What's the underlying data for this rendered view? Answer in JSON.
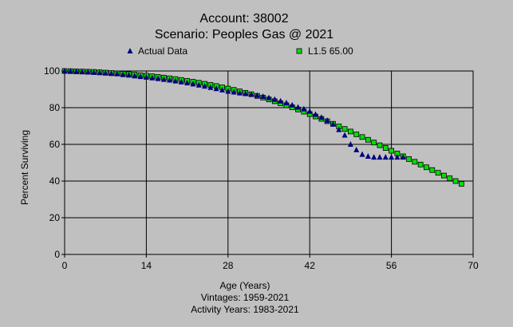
{
  "chart_data": {
    "type": "scatter",
    "title": "Account: 38002",
    "subtitle": "Scenario: Peoples Gas @ 2021",
    "xlabel": "Age (Years)",
    "ylabel": "Percent Surviving",
    "notes": [
      "Vintages: 1959-2021",
      "Activity Years: 1983-2021"
    ],
    "xlim": [
      0,
      70
    ],
    "ylim": [
      0,
      100
    ],
    "xticks": [
      0,
      14,
      28,
      42,
      56,
      70
    ],
    "yticks": [
      0,
      20,
      40,
      60,
      80,
      100
    ],
    "grid": true,
    "legend_position": "top",
    "series": [
      {
        "name": "Actual Data",
        "marker": "triangle",
        "color": "#000080",
        "x": [
          0,
          1,
          2,
          3,
          4,
          5,
          6,
          7,
          8,
          9,
          10,
          11,
          12,
          13,
          14,
          15,
          16,
          17,
          18,
          19,
          20,
          21,
          22,
          23,
          24,
          25,
          26,
          27,
          28,
          29,
          30,
          31,
          32,
          33,
          34,
          35,
          36,
          37,
          38,
          39,
          40,
          41,
          42,
          43,
          44,
          45,
          46,
          47,
          48,
          49,
          50,
          51,
          52,
          53,
          54,
          55,
          56,
          57,
          58
        ],
        "y": [
          100,
          99.9,
          99.7,
          99.5,
          99.4,
          99.2,
          99.0,
          98.8,
          98.6,
          98.4,
          98.0,
          97.7,
          97.3,
          96.9,
          96.6,
          96.2,
          95.8,
          95.4,
          95.0,
          94.5,
          94.0,
          93.5,
          92.9,
          92.3,
          91.7,
          91.0,
          90.3,
          89.6,
          88.9,
          88.5,
          88.0,
          87.6,
          87.2,
          86.7,
          86.1,
          85.4,
          84.5,
          83.6,
          82.6,
          81.4,
          80.2,
          79.3,
          78.0,
          76.3,
          74.7,
          73.0,
          71.0,
          68.0,
          65.0,
          60.0,
          57.0,
          54.5,
          53.5,
          53.0,
          53.0,
          53.0,
          53.0,
          53.0,
          53.0
        ]
      },
      {
        "name": "L1.5 65.00",
        "marker": "square",
        "color": "#00e000",
        "x": [
          0,
          1,
          2,
          3,
          4,
          5,
          6,
          7,
          8,
          9,
          10,
          11,
          12,
          13,
          14,
          15,
          16,
          17,
          18,
          19,
          20,
          21,
          22,
          23,
          24,
          25,
          26,
          27,
          28,
          29,
          30,
          31,
          32,
          33,
          34,
          35,
          36,
          37,
          38,
          39,
          40,
          41,
          42,
          43,
          44,
          45,
          46,
          47,
          48,
          49,
          50,
          51,
          52,
          53,
          54,
          55,
          56,
          57,
          58,
          59,
          60,
          61,
          62,
          63,
          64,
          65,
          66,
          67,
          68
        ],
        "y": [
          100,
          99.9,
          99.8,
          99.7,
          99.6,
          99.5,
          99.3,
          99.1,
          98.9,
          98.7,
          98.5,
          98.3,
          98.0,
          97.7,
          97.4,
          97.1,
          96.8,
          96.4,
          96.0,
          95.6,
          95.1,
          94.6,
          94.1,
          93.6,
          93.0,
          92.4,
          91.8,
          91.1,
          90.4,
          89.7,
          88.9,
          88.1,
          87.3,
          86.4,
          85.5,
          84.5,
          83.5,
          82.4,
          81.3,
          80.2,
          79.0,
          77.8,
          76.5,
          75.2,
          73.9,
          72.6,
          71.2,
          69.8,
          68.4,
          67.0,
          65.5,
          64.0,
          62.5,
          61.0,
          59.5,
          58.0,
          56.5,
          55.0,
          53.5,
          52.0,
          50.5,
          49.0,
          47.5,
          46.0,
          44.5,
          43.0,
          41.5,
          40.0,
          38.5
        ]
      }
    ]
  }
}
